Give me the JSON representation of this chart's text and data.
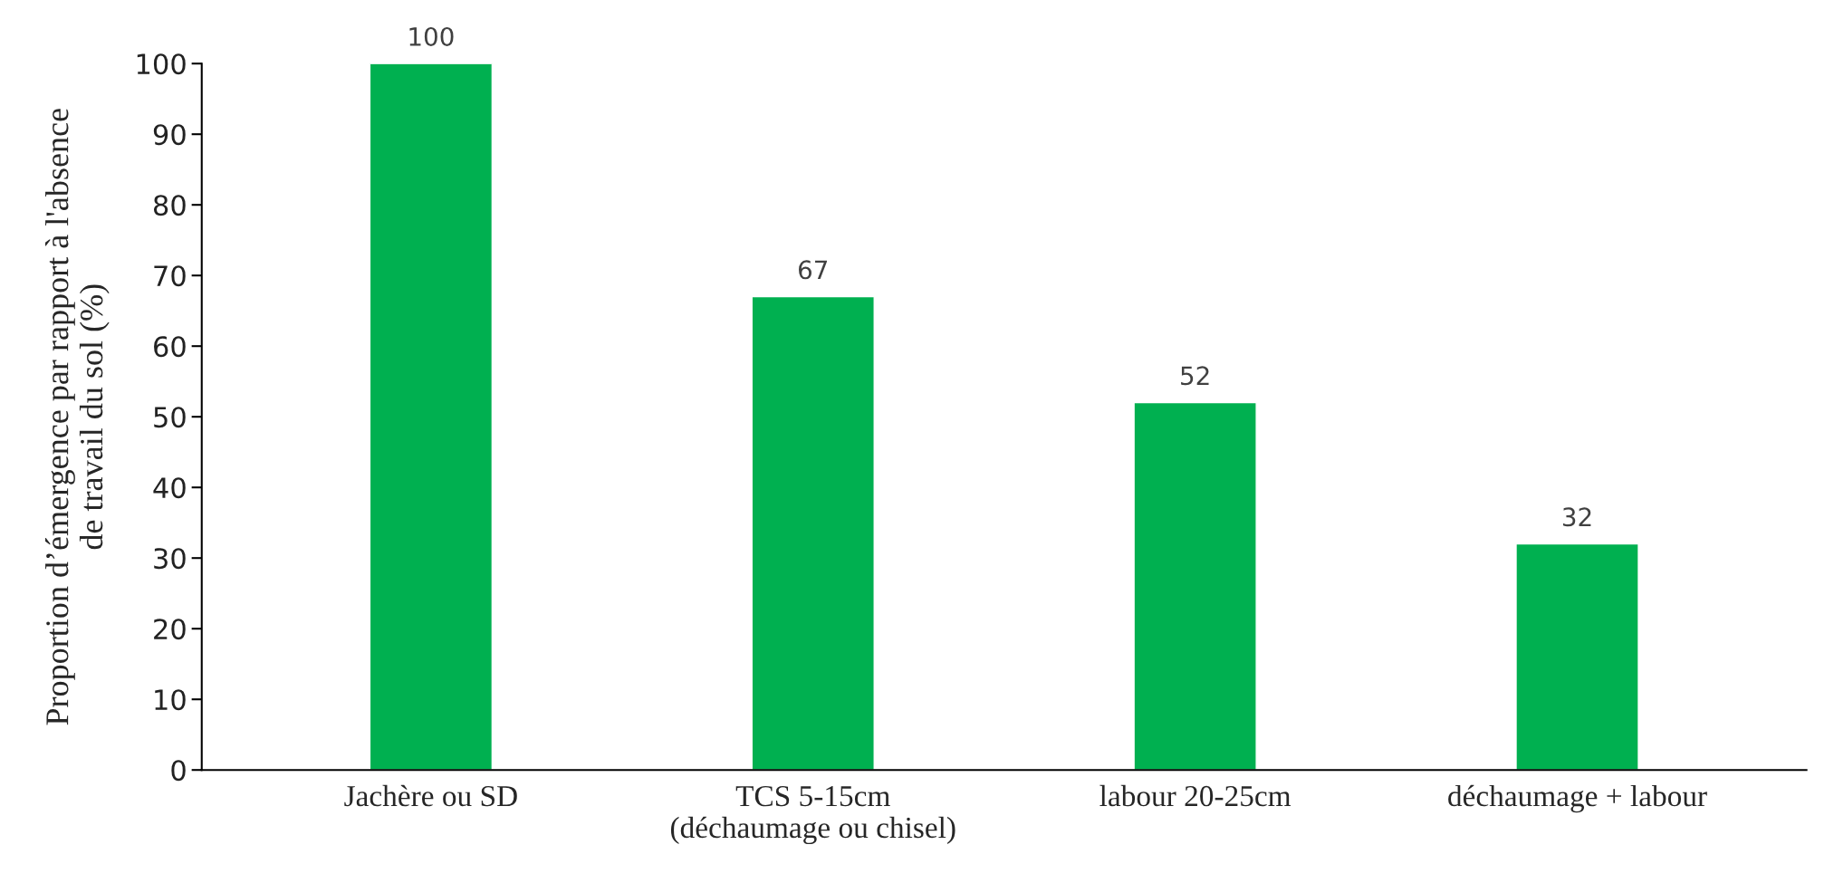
{
  "chart_data": {
    "type": "bar",
    "categories": [
      "Jachère ou SD",
      "TCS 5-15cm\n(déchaumage ou chisel)",
      "labour 20-25cm",
      "déchaumage + labour"
    ],
    "values": [
      100,
      67,
      52,
      32
    ],
    "color": "#00b050",
    "ylabel": "Proportion d’émergence par rapport à l'absence\nde travail du sol (%)",
    "ylim": [
      0,
      100
    ],
    "yticks": [
      0,
      10,
      20,
      30,
      40,
      50,
      60,
      70,
      80,
      90,
      100
    ],
    "data_labels": true,
    "grid": false
  }
}
